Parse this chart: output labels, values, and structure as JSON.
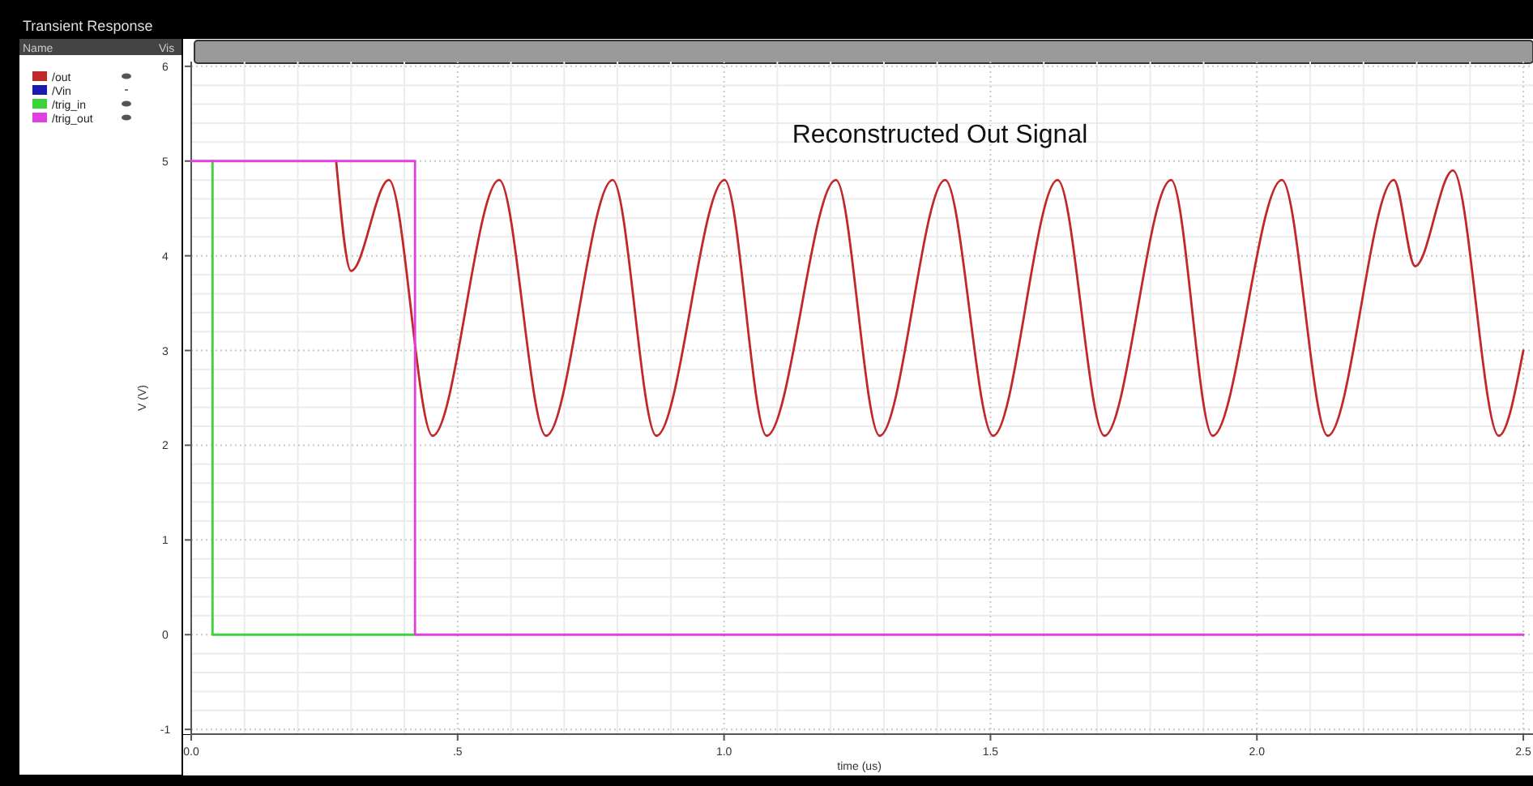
{
  "chart_data": {
    "type": "line",
    "title": "Reconstructed Out Signal",
    "subtitle": "Transient Response",
    "xlabel": "time (us)",
    "ylabel": "V (V)",
    "annotations": [
      "Name",
      "Vis"
    ],
    "xlim": [
      0,
      2.52
    ],
    "ylim": [
      -1.05,
      6.05
    ],
    "xticks": [
      {
        "value": 0,
        "label": "0.0"
      },
      {
        "value": 0.5,
        "label": ".5"
      },
      {
        "value": 1,
        "label": "1.0"
      },
      {
        "value": 1.5,
        "label": "1.5"
      },
      {
        "value": 2,
        "label": "2.0"
      },
      {
        "value": 2.5,
        "label": "2.5"
      }
    ],
    "yticks": [
      -1,
      0,
      1,
      2,
      3,
      4,
      5,
      6
    ],
    "grid": true,
    "legend": "top left",
    "line_style": "solid",
    "marker": "none",
    "series": [
      {
        "name": "/out",
        "color": "#c0282a",
        "x": [
          0.272,
          0.3,
          0.371,
          0.453,
          0.578,
          0.666,
          0.791,
          0.873,
          1.001,
          1.08,
          1.21,
          1.292,
          1.415,
          1.505,
          1.626,
          1.714,
          1.839,
          1.917,
          2.047,
          2.133,
          2.257,
          2.297,
          2.368,
          2.454,
          2.5
        ],
        "values": [
          5.0,
          3.84,
          4.8,
          2.1,
          4.8,
          2.1,
          4.8,
          2.1,
          4.8,
          2.1,
          4.8,
          2.1,
          4.8,
          2.1,
          4.8,
          2.1,
          4.8,
          2.1,
          4.8,
          2.1,
          4.8,
          3.89,
          4.9,
          2.1,
          3.0
        ]
      },
      {
        "name": "/Vin",
        "color": "#1a1ab0"
      },
      {
        "name": "/trig_in",
        "color": "#3cd23c",
        "type": "step",
        "x": [
          0.04,
          0.04,
          0.42
        ],
        "values": [
          5,
          0,
          0
        ]
      },
      {
        "name": "/trig_out",
        "color": "#e040e0",
        "type": "step",
        "x": [
          0,
          0.42,
          2.5
        ],
        "values": [
          5,
          0,
          0
        ]
      }
    ]
  }
}
